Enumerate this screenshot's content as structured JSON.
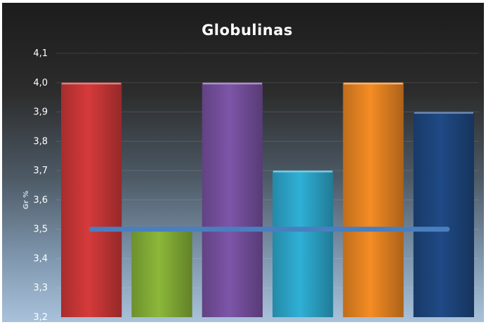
{
  "chart_data": {
    "type": "bar",
    "title": "Globulinas",
    "xlabel": "",
    "ylabel": "Gr %",
    "ylim": [
      3.2,
      4.1
    ],
    "yticks": [
      "3,2",
      "3,3",
      "3,4",
      "3,5",
      "3,6",
      "3,7",
      "3,8",
      "3,9",
      "4,0",
      "4,1"
    ],
    "grid": true,
    "bars": [
      {
        "value": 4.0,
        "color": "#d63a3a"
      },
      {
        "value": 3.5,
        "color": "#8cb83a"
      },
      {
        "value": 4.0,
        "color": "#7d55a8"
      },
      {
        "value": 3.7,
        "color": "#2fb0d6"
      },
      {
        "value": 4.0,
        "color": "#f58c24"
      },
      {
        "value": 3.9,
        "color": "#1f4a85"
      }
    ],
    "reference_line": {
      "value": 3.5,
      "color": "#4a7fbf"
    }
  }
}
